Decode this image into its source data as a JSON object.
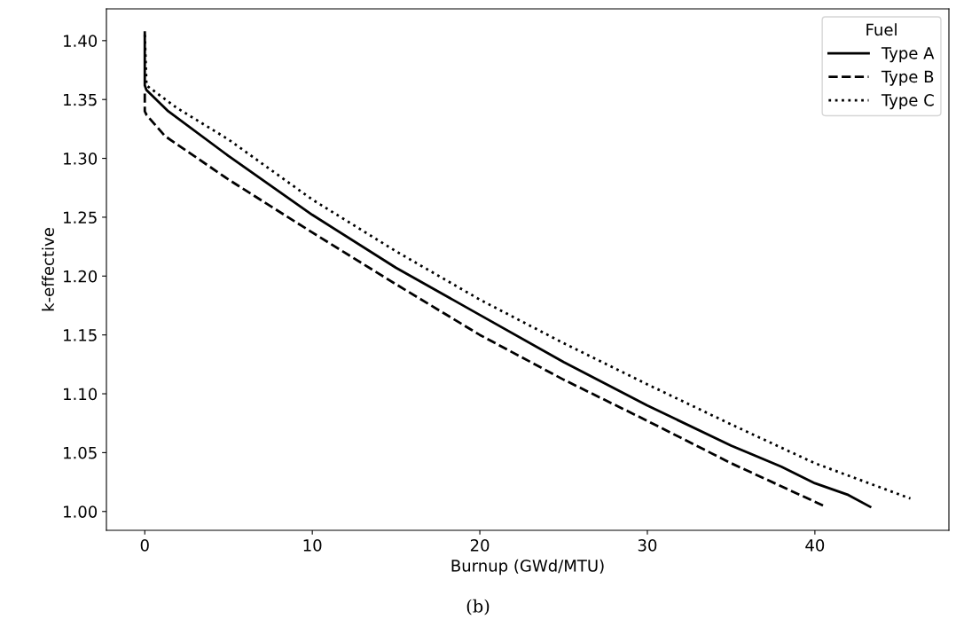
{
  "chart_data": {
    "type": "line",
    "xlabel": "Burnup (GWd/MTU)",
    "ylabel": "k-effective",
    "legend_title": "Fuel",
    "legend": "top right",
    "grid": false,
    "xlim": [
      -2.29,
      48.0
    ],
    "xticks": [
      0,
      10,
      20,
      30,
      40
    ],
    "ylim": [
      0.984,
      1.427
    ],
    "yticks": [
      {
        "value": 1.0,
        "label": "1.00"
      },
      {
        "value": 1.05,
        "label": "1.05"
      },
      {
        "value": 1.1,
        "label": "1.10"
      },
      {
        "value": 1.15,
        "label": "1.15"
      },
      {
        "value": 1.2,
        "label": "1.20"
      },
      {
        "value": 1.25,
        "label": "1.25"
      },
      {
        "value": 1.3,
        "label": "1.30"
      },
      {
        "value": 1.35,
        "label": "1.35"
      },
      {
        "value": 1.4,
        "label": "1.40"
      }
    ],
    "annotations": [
      "(b)"
    ],
    "series": [
      {
        "name": "Type A",
        "color": "#000000",
        "line_style": "solid",
        "x": [
          0,
          0,
          0.1,
          1.4,
          5,
          10,
          15,
          20,
          25,
          30,
          35,
          38,
          40,
          42,
          43.3
        ],
        "values": [
          1.407,
          1.362,
          1.358,
          1.34,
          1.302,
          1.252,
          1.207,
          1.167,
          1.127,
          1.09,
          1.056,
          1.038,
          1.024,
          1.014,
          1.004
        ]
      },
      {
        "name": "Type B",
        "color": "#000000",
        "line_style": "dashed",
        "x": [
          0,
          0,
          0.1,
          1.2,
          5,
          10,
          15,
          20,
          25,
          30,
          35,
          40.5
        ],
        "values": [
          1.355,
          1.34,
          1.337,
          1.319,
          1.282,
          1.237,
          1.193,
          1.15,
          1.112,
          1.077,
          1.041,
          1.005
        ]
      },
      {
        "name": "Type C",
        "color": "#000000",
        "line_style": "dotted",
        "x": [
          0,
          0.1,
          1.9,
          5,
          10,
          15,
          20,
          25,
          30,
          35,
          40,
          45.7
        ],
        "values": [
          1.405,
          1.362,
          1.343,
          1.316,
          1.265,
          1.221,
          1.18,
          1.143,
          1.108,
          1.074,
          1.041,
          1.011
        ]
      }
    ]
  }
}
